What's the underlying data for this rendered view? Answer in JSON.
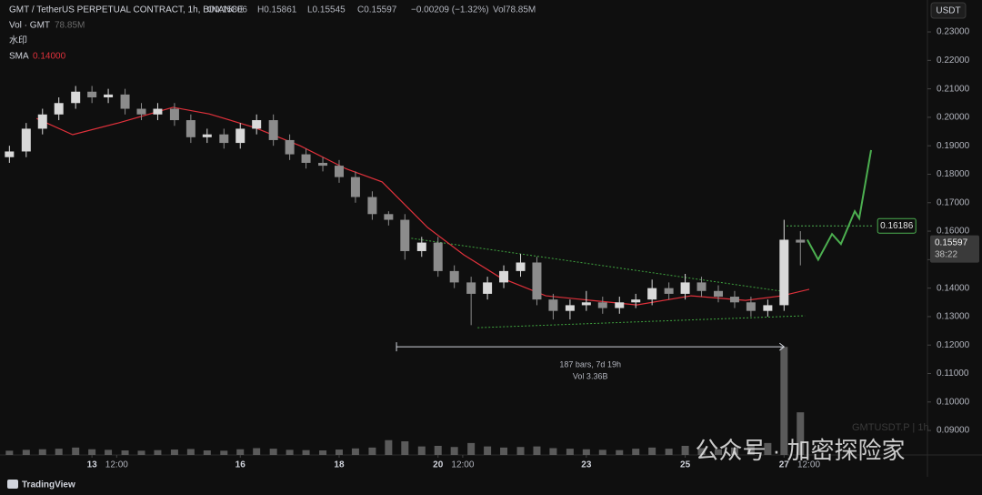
{
  "header": {
    "symbol": "GMT / TetherUS PERPETUAL CONTRACT, 1h, BINANCE",
    "open": "O0.15806",
    "high": "H0.15861",
    "low": "L0.15545",
    "close": "C0.15597",
    "change": "−0.00209 (−1.32%)",
    "volume": "Vol78.85M",
    "watermark_label": "水印"
  },
  "chart_data": {
    "type": "candlestick",
    "currency": "USDT",
    "x": [
      11.33,
      11.67,
      12,
      12.33,
      12.67,
      13,
      13.33,
      13.67,
      14,
      14.33,
      14.67,
      15,
      15.33,
      15.67,
      16,
      16.33,
      16.67,
      17,
      17.33,
      17.67,
      18,
      18.33,
      18.67,
      19,
      19.33,
      19.67,
      20,
      20.33,
      20.67,
      21,
      21.33,
      21.67,
      22,
      22.33,
      22.67,
      23,
      23.33,
      23.67,
      24,
      24.33,
      24.67,
      25,
      25.33,
      25.67,
      26,
      26.33,
      26.67,
      27,
      27.33
    ],
    "open": [
      0.186,
      0.188,
      0.196,
      0.201,
      0.205,
      0.209,
      0.207,
      0.208,
      0.203,
      0.201,
      0.203,
      0.199,
      0.193,
      0.194,
      0.191,
      0.196,
      0.199,
      0.192,
      0.187,
      0.184,
      0.183,
      0.179,
      0.172,
      0.166,
      0.164,
      0.153,
      0.156,
      0.146,
      0.142,
      0.138,
      0.142,
      0.146,
      0.149,
      0.136,
      0.132,
      0.134,
      0.135,
      0.133,
      0.135,
      0.136,
      0.14,
      0.138,
      0.142,
      0.139,
      0.137,
      0.135,
      0.132,
      0.134,
      0.157
    ],
    "high": [
      0.19,
      0.198,
      0.203,
      0.207,
      0.211,
      0.211,
      0.21,
      0.21,
      0.205,
      0.205,
      0.205,
      0.201,
      0.196,
      0.196,
      0.198,
      0.201,
      0.201,
      0.194,
      0.189,
      0.186,
      0.185,
      0.181,
      0.174,
      0.167,
      0.166,
      0.158,
      0.158,
      0.148,
      0.144,
      0.144,
      0.148,
      0.152,
      0.151,
      0.138,
      0.136,
      0.139,
      0.137,
      0.137,
      0.138,
      0.143,
      0.142,
      0.145,
      0.144,
      0.141,
      0.139,
      0.137,
      0.136,
      0.164,
      0.16
    ],
    "low": [
      0.184,
      0.186,
      0.194,
      0.199,
      0.203,
      0.205,
      0.205,
      0.201,
      0.199,
      0.199,
      0.197,
      0.191,
      0.191,
      0.189,
      0.189,
      0.194,
      0.19,
      0.185,
      0.182,
      0.181,
      0.177,
      0.17,
      0.164,
      0.162,
      0.15,
      0.151,
      0.144,
      0.14,
      0.127,
      0.136,
      0.14,
      0.144,
      0.134,
      0.129,
      0.129,
      0.132,
      0.131,
      0.131,
      0.133,
      0.134,
      0.136,
      0.136,
      0.137,
      0.135,
      0.133,
      0.13,
      0.13,
      0.132,
      0.148
    ],
    "close": [
      0.188,
      0.196,
      0.201,
      0.205,
      0.209,
      0.207,
      0.208,
      0.203,
      0.201,
      0.203,
      0.199,
      0.193,
      0.194,
      0.191,
      0.196,
      0.199,
      0.192,
      0.187,
      0.184,
      0.183,
      0.179,
      0.172,
      0.166,
      0.164,
      0.153,
      0.156,
      0.146,
      0.142,
      0.138,
      0.142,
      0.146,
      0.149,
      0.136,
      0.132,
      0.134,
      0.135,
      0.133,
      0.135,
      0.136,
      0.14,
      0.138,
      0.142,
      0.139,
      0.137,
      0.135,
      0.132,
      0.134,
      0.157,
      0.156
    ],
    "up_color": "#d9d9d9",
    "down_color": "#8c8c8c",
    "xlim": [
      11.14,
      29.9
    ],
    "ylim": [
      0.0814,
      0.2412
    ],
    "xticks": [
      13,
      {
        "value": 13.5,
        "label": "12:00"
      },
      16,
      18,
      20,
      {
        "value": 20.5,
        "label": "12:00"
      },
      23,
      25,
      27,
      {
        "value": 27.5,
        "label": "12:00"
      }
    ],
    "yticks": [
      {
        "value": 0.09,
        "label": "0.09000"
      },
      {
        "value": 0.1,
        "label": "0.10000"
      },
      {
        "value": 0.11,
        "label": "0.11000"
      },
      {
        "value": 0.12,
        "label": "0.12000"
      },
      {
        "value": 0.13,
        "label": "0.13000"
      },
      {
        "value": 0.14,
        "label": "0.14000"
      },
      {
        "value": 0.15,
        "label": "0.15000"
      },
      {
        "value": 0.16,
        "label": "0.16000"
      },
      {
        "value": 0.17,
        "label": "0.17000"
      },
      {
        "value": 0.18,
        "label": "0.18000"
      },
      {
        "value": 0.19,
        "label": "0.19000"
      },
      {
        "value": 0.2,
        "label": "0.20000"
      },
      {
        "value": 0.21,
        "label": "0.21000"
      },
      {
        "value": 0.22,
        "label": "0.22000"
      },
      {
        "value": 0.23,
        "label": "0.23000"
      }
    ],
    "sma": {
      "name": "SMA",
      "value_label": "0.14000",
      "color": "#e0313b",
      "x": [
        11.88,
        12.61,
        13.53,
        14.64,
        15.37,
        16.29,
        17.21,
        18.13,
        18.87,
        19.79,
        20.52,
        21.26,
        22.18,
        23.1,
        24.02,
        25.12,
        26.22,
        26.96,
        27.51
      ],
      "values": [
        0.1996,
        0.1939,
        0.198,
        0.2035,
        0.2012,
        0.1964,
        0.19,
        0.182,
        0.1773,
        0.1613,
        0.1517,
        0.1437,
        0.1373,
        0.1357,
        0.1341,
        0.1373,
        0.1357,
        0.1373,
        0.1396
      ]
    },
    "volume": {
      "name": "Vol · GMT",
      "value_label": "78.85M",
      "color": "#5a5a5a",
      "ylim": [
        0,
        4000
      ],
      "values": [
        150,
        180,
        200,
        220,
        260,
        200,
        180,
        160,
        150,
        170,
        190,
        210,
        160,
        150,
        200,
        240,
        220,
        180,
        170,
        160,
        190,
        230,
        260,
        520,
        480,
        300,
        320,
        280,
        420,
        300,
        260,
        280,
        300,
        240,
        220,
        200,
        180,
        170,
        220,
        260,
        220,
        320,
        240,
        200,
        260,
        360,
        420,
        3800,
        1500
      ]
    },
    "triangle_upper": {
      "color": "#3fa33f",
      "x": [
        19.46,
        26.96
      ],
      "y": [
        0.1575,
        0.1389
      ]
    },
    "triangle_lower": {
      "color": "#3fa33f",
      "x": [
        20.8,
        27.42
      ],
      "y": [
        0.1261,
        0.1303
      ]
    },
    "measure": {
      "x": [
        19.16,
        27.0
      ],
      "y": 0.1194,
      "label": "187 bars, 7d 19h",
      "volume_label": "Vol 3.36B"
    },
    "target": {
      "value": 0.16186,
      "label": "0.16186",
      "x": [
        27.05,
        28.8
      ],
      "color": "#4caf50"
    },
    "projection": {
      "color": "#4caf50",
      "x": [
        27.47,
        27.69,
        27.97,
        28.15,
        28.43,
        28.52,
        28.76
      ],
      "y": [
        0.157,
        0.15,
        0.159,
        0.1555,
        0.167,
        0.1645,
        0.1885
      ]
    },
    "last_price": {
      "value": 0.15597,
      "label": "0.15597",
      "countdown": "38:22"
    }
  },
  "watermark_symbol": "GMTUSDT.P | 1h",
  "overlay_text": "公众号 · 加密探险家",
  "brand": "TradingView"
}
